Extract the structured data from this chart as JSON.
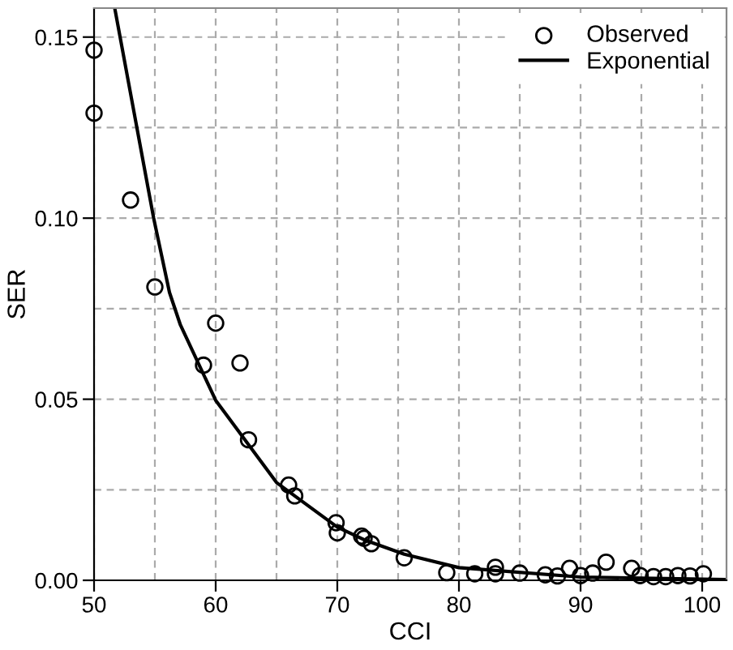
{
  "chart_data": {
    "type": "scatter",
    "xlabel": "CCI",
    "ylabel": "SER",
    "xlim": [
      50,
      102
    ],
    "ylim": [
      0,
      0.158
    ],
    "xticks": [
      50,
      60,
      70,
      80,
      90,
      100
    ],
    "yticks": [
      {
        "value": 0,
        "label": "0.00"
      },
      {
        "value": 0.05,
        "label": "0.05"
      },
      {
        "value": 0.1,
        "label": "0.10"
      },
      {
        "value": 0.15,
        "label": "0.15"
      }
    ],
    "grid": true,
    "legend": "top right",
    "series": [
      {
        "name": "Observed",
        "marker": "circle",
        "color": "#000000",
        "x": [
          50,
          50,
          53,
          55,
          60,
          59,
          62,
          62.7,
          66,
          66.5,
          69.9,
          70,
          72,
          72.2,
          72.8,
          75.5,
          79,
          81.3,
          83,
          83,
          85,
          87.1,
          88.1,
          89.1,
          90,
          91,
          92.1,
          94.2,
          94.9,
          96,
          97,
          98,
          99,
          100.1
        ],
        "values": [
          0.1464,
          0.129,
          0.105,
          0.081,
          0.071,
          0.0594,
          0.06,
          0.0388,
          0.0263,
          0.0233,
          0.0159,
          0.0131,
          0.0122,
          0.0116,
          0.0101,
          0.0062,
          0.0021,
          0.0018,
          0.0036,
          0.0018,
          0.002,
          0.0015,
          0.0012,
          0.0033,
          0.0013,
          0.002,
          0.005,
          0.0033,
          0.0013,
          0.001,
          0.001,
          0.0013,
          0.0012,
          0.0018
        ]
      },
      {
        "name": "Exponential",
        "type": "line",
        "marker": "none",
        "line_style": "solid",
        "color": "#000000",
        "x": [
          51.7,
          54.9,
          56.2,
          57.1,
          60,
          65,
          70,
          72.2,
          75.5,
          80,
          90,
          102
        ],
        "values": [
          0.158,
          0.1,
          0.0795,
          0.0705,
          0.0497,
          0.027,
          0.0147,
          0.0112,
          0.0072,
          0.0035,
          0.0009,
          0.0002
        ]
      }
    ]
  }
}
